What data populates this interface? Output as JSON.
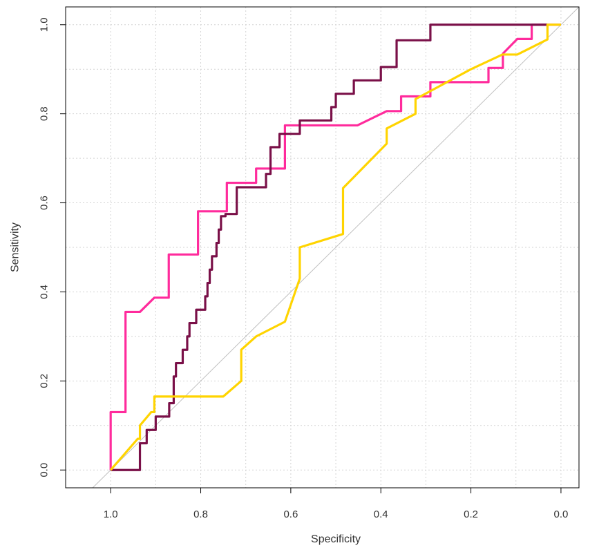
{
  "chart_data": {
    "type": "line",
    "xlabel": "Specificity",
    "ylabel": "Sensitivity",
    "xlim": [
      1.1,
      -0.04
    ],
    "ylim": [
      -0.04,
      1.04
    ],
    "x_reversed": true,
    "x_ticks": [
      1.0,
      0.8,
      0.6,
      0.4,
      0.2,
      0.0
    ],
    "x_tick_labels": [
      "1.0",
      "0.8",
      "0.6",
      "0.4",
      "0.2",
      "0.0"
    ],
    "y_ticks": [
      0.0,
      0.2,
      0.4,
      0.6,
      0.8,
      1.0
    ],
    "y_tick_labels": [
      "0.0",
      "0.2",
      "0.4",
      "0.6",
      "0.8",
      "1.0"
    ],
    "grid": true,
    "grid_step": 0.1,
    "reference_line": {
      "color": "#c0c0c0",
      "points": [
        [
          1.04,
          -0.04
        ],
        [
          -0.04,
          1.04
        ]
      ]
    },
    "series": [
      {
        "color": "#ff2b9c",
        "points": [
          [
            1.0,
            0.0
          ],
          [
            1.0,
            0.13
          ],
          [
            0.967,
            0.13
          ],
          [
            0.967,
            0.355
          ],
          [
            0.935,
            0.355
          ],
          [
            0.903,
            0.387
          ],
          [
            0.871,
            0.387
          ],
          [
            0.871,
            0.484
          ],
          [
            0.806,
            0.484
          ],
          [
            0.806,
            0.581
          ],
          [
            0.742,
            0.581
          ],
          [
            0.742,
            0.645
          ],
          [
            0.677,
            0.645
          ],
          [
            0.677,
            0.677
          ],
          [
            0.613,
            0.677
          ],
          [
            0.613,
            0.774
          ],
          [
            0.452,
            0.774
          ],
          [
            0.387,
            0.806
          ],
          [
            0.355,
            0.806
          ],
          [
            0.355,
            0.839
          ],
          [
            0.29,
            0.839
          ],
          [
            0.29,
            0.871
          ],
          [
            0.161,
            0.871
          ],
          [
            0.161,
            0.903
          ],
          [
            0.129,
            0.903
          ],
          [
            0.129,
            0.935
          ],
          [
            0.097,
            0.968
          ],
          [
            0.065,
            0.968
          ],
          [
            0.065,
            1.0
          ],
          [
            0.0,
            1.0
          ]
        ]
      },
      {
        "color": "#7a1048",
        "points": [
          [
            1.0,
            0.0
          ],
          [
            0.935,
            0.0
          ],
          [
            0.935,
            0.06
          ],
          [
            0.92,
            0.06
          ],
          [
            0.92,
            0.09
          ],
          [
            0.9,
            0.09
          ],
          [
            0.9,
            0.12
          ],
          [
            0.88,
            0.12
          ],
          [
            0.87,
            0.12
          ],
          [
            0.87,
            0.15
          ],
          [
            0.86,
            0.15
          ],
          [
            0.86,
            0.21
          ],
          [
            0.855,
            0.21
          ],
          [
            0.855,
            0.24
          ],
          [
            0.84,
            0.24
          ],
          [
            0.84,
            0.27
          ],
          [
            0.83,
            0.27
          ],
          [
            0.83,
            0.3
          ],
          [
            0.825,
            0.3
          ],
          [
            0.825,
            0.33
          ],
          [
            0.81,
            0.33
          ],
          [
            0.81,
            0.36
          ],
          [
            0.79,
            0.36
          ],
          [
            0.79,
            0.39
          ],
          [
            0.785,
            0.39
          ],
          [
            0.785,
            0.42
          ],
          [
            0.78,
            0.42
          ],
          [
            0.78,
            0.45
          ],
          [
            0.775,
            0.45
          ],
          [
            0.775,
            0.48
          ],
          [
            0.765,
            0.48
          ],
          [
            0.765,
            0.51
          ],
          [
            0.76,
            0.51
          ],
          [
            0.76,
            0.54
          ],
          [
            0.755,
            0.54
          ],
          [
            0.755,
            0.57
          ],
          [
            0.745,
            0.57
          ],
          [
            0.745,
            0.575
          ],
          [
            0.72,
            0.575
          ],
          [
            0.72,
            0.635
          ],
          [
            0.655,
            0.635
          ],
          [
            0.655,
            0.665
          ],
          [
            0.645,
            0.665
          ],
          [
            0.645,
            0.725
          ],
          [
            0.625,
            0.725
          ],
          [
            0.625,
            0.755
          ],
          [
            0.58,
            0.755
          ],
          [
            0.58,
            0.785
          ],
          [
            0.51,
            0.785
          ],
          [
            0.51,
            0.815
          ],
          [
            0.5,
            0.815
          ],
          [
            0.5,
            0.845
          ],
          [
            0.46,
            0.845
          ],
          [
            0.46,
            0.875
          ],
          [
            0.4,
            0.875
          ],
          [
            0.4,
            0.905
          ],
          [
            0.365,
            0.905
          ],
          [
            0.365,
            0.965
          ],
          [
            0.29,
            0.965
          ],
          [
            0.29,
            1.0
          ],
          [
            0.03,
            1.0
          ]
        ]
      },
      {
        "color": "#ffd400",
        "points": [
          [
            1.0,
            0.0
          ],
          [
            0.94,
            0.07
          ],
          [
            0.935,
            0.07
          ],
          [
            0.935,
            0.1
          ],
          [
            0.91,
            0.13
          ],
          [
            0.903,
            0.13
          ],
          [
            0.903,
            0.165
          ],
          [
            0.75,
            0.165
          ],
          [
            0.71,
            0.2
          ],
          [
            0.71,
            0.27
          ],
          [
            0.677,
            0.3
          ],
          [
            0.613,
            0.333
          ],
          [
            0.58,
            0.43
          ],
          [
            0.58,
            0.5
          ],
          [
            0.484,
            0.53
          ],
          [
            0.484,
            0.633
          ],
          [
            0.387,
            0.733
          ],
          [
            0.387,
            0.767
          ],
          [
            0.323,
            0.8
          ],
          [
            0.323,
            0.833
          ],
          [
            0.2,
            0.9
          ],
          [
            0.13,
            0.933
          ],
          [
            0.097,
            0.933
          ],
          [
            0.03,
            0.967
          ],
          [
            0.03,
            1.0
          ],
          [
            0.0,
            1.0
          ]
        ]
      }
    ]
  }
}
